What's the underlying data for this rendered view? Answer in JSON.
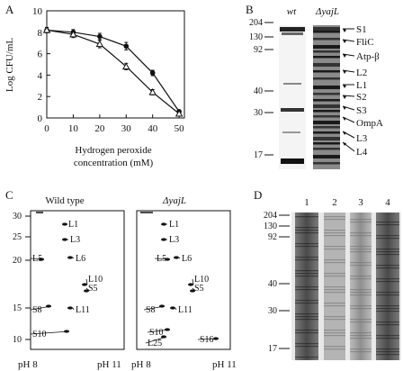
{
  "panels": {
    "A": {
      "letter": "A"
    },
    "B": {
      "letter": "B"
    },
    "C": {
      "letter": "C"
    },
    "D": {
      "letter": "D"
    }
  },
  "chart_data": {
    "type": "line",
    "x": [
      0,
      10,
      20,
      30,
      40,
      50
    ],
    "xlabel": "Hydrogen peroxide concentration (mM)",
    "xlabel_lines": [
      "Hydrogen peroxide",
      "concentration (mM)"
    ],
    "ylabel": "Log CFU/mL",
    "xlim": [
      0,
      52
    ],
    "ylim": [
      0,
      10
    ],
    "xticks": [
      "0",
      "10",
      "20",
      "30",
      "40",
      "50"
    ],
    "yticks": [
      "0",
      "2",
      "4",
      "6",
      "8",
      "10"
    ],
    "series": [
      {
        "marker": "filled-circle",
        "values": [
          8.2,
          8.0,
          7.6,
          6.7,
          4.2,
          0.6
        ],
        "errors": [
          0.25,
          0.25,
          0.3,
          0.35,
          0.25,
          0.1
        ]
      },
      {
        "marker": "open-triangle",
        "values": [
          8.2,
          7.8,
          6.9,
          4.8,
          2.4,
          0.4
        ],
        "errors": [
          0.25,
          0.3,
          0.35,
          0.3,
          0.25,
          0.1
        ]
      }
    ]
  },
  "panelB": {
    "mw_labels": [
      "204",
      "130",
      "92",
      "40",
      "30",
      "17"
    ],
    "lane_labels": {
      "wt": "wt",
      "mut": "ΔyajL"
    },
    "bands": [
      "S1",
      "FliC",
      "Atp-β",
      "L2",
      "L1",
      "S2",
      "S3",
      "OmpA",
      "L3",
      "L4"
    ]
  },
  "panelC": {
    "ymarks": [
      "30",
      "25",
      "20",
      "15",
      "10"
    ],
    "wild_title": "Wild type",
    "mut_title": "ΔyajL",
    "ph_low": "pH 8",
    "ph_high": "pH 11",
    "left_spots": [
      "L1",
      "L3",
      "L5",
      "L6",
      "L10",
      "S5",
      "S8",
      "L11",
      "S10"
    ],
    "right_spots": [
      "L1",
      "L3",
      "L5",
      "L6",
      "L10",
      "S5",
      "S8",
      "L11",
      "S10",
      "L25",
      "S16"
    ]
  },
  "panelD": {
    "mw_labels": [
      "204",
      "130",
      "92",
      "40",
      "30",
      "17"
    ],
    "lanes": [
      "1",
      "2",
      "3",
      "4"
    ]
  }
}
